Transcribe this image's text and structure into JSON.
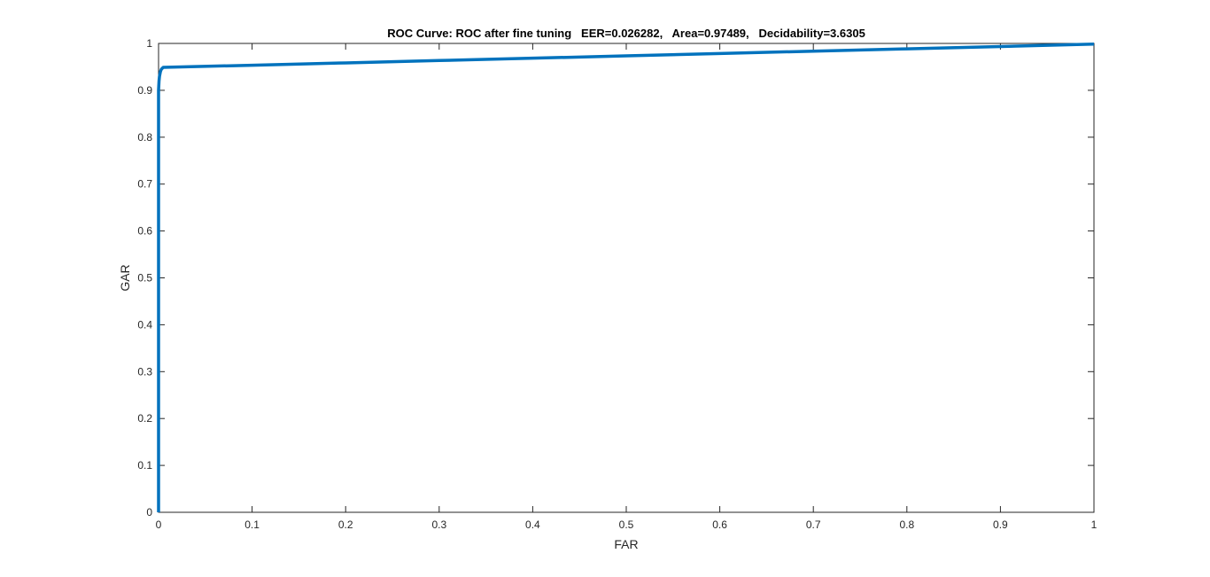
{
  "chart_data": {
    "type": "line",
    "title": "ROC Curve: ROC after fine tuning   EER=0.026282,   Area=0.97489,   Decidability=3.6305",
    "xlabel": "FAR",
    "ylabel": "GAR",
    "xlim": [
      0,
      1
    ],
    "ylim": [
      0,
      1
    ],
    "xticks": [
      "0",
      "0.1",
      "0.2",
      "0.3",
      "0.4",
      "0.5",
      "0.6",
      "0.7",
      "0.8",
      "0.9",
      "1"
    ],
    "yticks": [
      "0",
      "0.1",
      "0.2",
      "0.3",
      "0.4",
      "0.5",
      "0.6",
      "0.7",
      "0.8",
      "0.9",
      "1"
    ],
    "grid": false,
    "box": true,
    "series": [
      {
        "color": "#0072bd",
        "x": [
          0,
          0,
          0,
          0.0005,
          0.001,
          0.002,
          0.003,
          0.005,
          0.1,
          0.2,
          0.3,
          0.4,
          0.5,
          0.6,
          0.7,
          0.8,
          0.9,
          1.0
        ],
        "y": [
          0,
          0.5,
          0.9,
          0.92,
          0.93,
          0.94,
          0.945,
          0.949,
          0.9535,
          0.9585,
          0.9635,
          0.9685,
          0.9735,
          0.9785,
          0.9835,
          0.9885,
          0.9935,
          0.9985
        ]
      }
    ]
  }
}
